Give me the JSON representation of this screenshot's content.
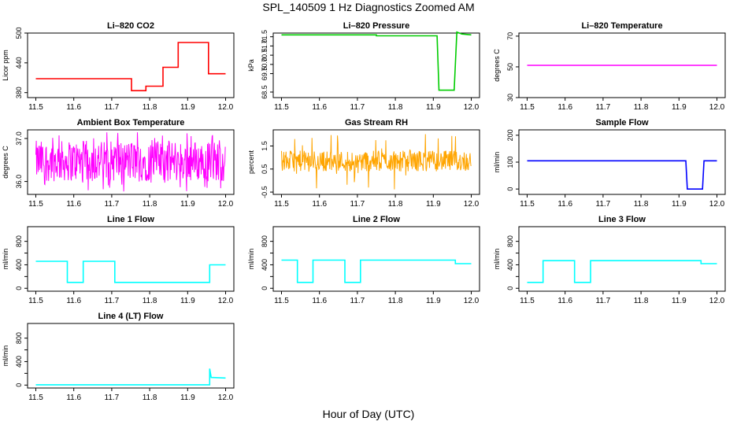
{
  "figure": {
    "title": "SPL_140509  1 Hz Diagnostics Zoomed AM",
    "xlabel": "Hour of Day (UTC)"
  },
  "chart_data": [
    {
      "type": "line",
      "title": "Li–820 CO2",
      "ylabel": "Licor ppm",
      "color": "#ff0000",
      "xlim": [
        11.5,
        12.0
      ],
      "ylim": [
        370,
        500
      ],
      "yticks": [
        380,
        440,
        500
      ],
      "ytick_labels": [
        "380",
        "440",
        "500"
      ],
      "x_ticks": [
        "11.5",
        "11.6",
        "11.7",
        "11.8",
        "11.9",
        "12.0"
      ],
      "series": [
        {
          "values": [
            [
              11.5,
              408
            ],
            [
              11.752,
              408
            ],
            [
              11.752,
              384
            ],
            [
              11.79,
              384
            ],
            [
              11.79,
              393
            ],
            [
              11.835,
              393
            ],
            [
              11.835,
              431
            ],
            [
              11.875,
              431
            ],
            [
              11.875,
              481
            ],
            [
              11.955,
              481
            ],
            [
              11.955,
              418
            ],
            [
              12.0,
              418
            ]
          ]
        }
      ]
    },
    {
      "type": "line",
      "title": "Li–820 Pressure",
      "ylabel": "kPa",
      "color": "#00cc00",
      "xlim": [
        11.5,
        12.0
      ],
      "ylim": [
        68.2,
        71.7
      ],
      "yticks": [
        68.5,
        69.5,
        70.0,
        70.5,
        71.0,
        71.5
      ],
      "ytick_labels": [
        "68.5",
        "69.5",
        "70.0",
        "70.5",
        "71.0",
        "71.5"
      ],
      "x_ticks": [
        "11.5",
        "11.6",
        "11.7",
        "11.8",
        "11.9",
        "12.0"
      ],
      "series": [
        {
          "values": [
            [
              11.5,
              71.6
            ],
            [
              11.75,
              71.6
            ],
            [
              11.75,
              71.55
            ],
            [
              11.91,
              71.55
            ],
            [
              11.915,
              68.6
            ],
            [
              11.955,
              68.6
            ],
            [
              11.962,
              71.75
            ],
            [
              11.975,
              71.65
            ],
            [
              12.0,
              71.6
            ]
          ]
        }
      ]
    },
    {
      "type": "line",
      "title": "Li–820 Temperature",
      "ylabel": "degrees C",
      "color": "#ff00ff",
      "xlim": [
        11.5,
        12.0
      ],
      "ylim": [
        30,
        72
      ],
      "yticks": [
        30,
        50,
        70
      ],
      "ytick_labels": [
        "30",
        "50",
        "70"
      ],
      "x_ticks": [
        "11.5",
        "11.6",
        "11.7",
        "11.8",
        "11.9",
        "12.0"
      ],
      "series": [
        {
          "values": [
            [
              11.5,
              51
            ],
            [
              12.0,
              51
            ]
          ]
        }
      ]
    },
    {
      "type": "line",
      "title": "Ambient Box Temperature",
      "ylabel": "degrees C",
      "color": "#ff00ff",
      "xlim": [
        11.5,
        12.0
      ],
      "ylim": [
        35.7,
        37.2
      ],
      "yticks": [
        36.0,
        37.0
      ],
      "ytick_labels": [
        "36.0",
        "37.0"
      ],
      "x_ticks": [
        "11.5",
        "11.6",
        "11.7",
        "11.8",
        "11.9",
        "12.0"
      ],
      "series": [
        {
          "values": [
            [
              11.5,
              36.5
            ],
            [
              12.0,
              36.5
            ]
          ],
          "noise_band": [
            36.0,
            36.95
          ]
        }
      ]
    },
    {
      "type": "line",
      "title": "Gas Stream RH",
      "ylabel": "percent",
      "color": "#ffa500",
      "xlim": [
        11.5,
        12.0
      ],
      "ylim": [
        -0.6,
        2.2
      ],
      "yticks": [
        -0.5,
        0.5,
        1.5
      ],
      "ytick_labels": [
        "-0.5",
        "0.5",
        "1.5"
      ],
      "x_ticks": [
        "11.5",
        "11.6",
        "11.7",
        "11.8",
        "11.9",
        "12.0"
      ],
      "series": [
        {
          "values": [
            [
              11.5,
              0.9
            ],
            [
              12.0,
              0.9
            ]
          ],
          "noise_band": [
            0.4,
            1.3
          ]
        }
      ]
    },
    {
      "type": "line",
      "title": "Sample Flow",
      "ylabel": "ml/min",
      "color": "#0000ff",
      "xlim": [
        11.5,
        12.0
      ],
      "ylim": [
        -20,
        220
      ],
      "yticks": [
        0,
        100,
        200
      ],
      "ytick_labels": [
        "0",
        "100",
        "200"
      ],
      "x_ticks": [
        "11.5",
        "11.6",
        "11.7",
        "11.8",
        "11.9",
        "12.0"
      ],
      "series": [
        {
          "values": [
            [
              11.5,
              105
            ],
            [
              11.918,
              105
            ],
            [
              11.922,
              0
            ],
            [
              11.962,
              0
            ],
            [
              11.966,
              105
            ],
            [
              12.0,
              105
            ]
          ]
        }
      ]
    },
    {
      "type": "line",
      "title": "Line 1 Flow",
      "ylabel": "ml/min",
      "color": "#00ffff",
      "xlim": [
        11.5,
        12.0
      ],
      "ylim": [
        -50,
        1050
      ],
      "yticks": [
        0,
        200,
        400,
        600,
        800
      ],
      "ytick_labels": [
        "0",
        "400",
        "800"
      ],
      "x_ticks": [
        "11.5",
        "11.6",
        "11.7",
        "11.8",
        "11.9",
        "12.0"
      ],
      "series": [
        {
          "values": [
            [
              11.5,
              460
            ],
            [
              11.583,
              460
            ],
            [
              11.583,
              100
            ],
            [
              11.625,
              100
            ],
            [
              11.625,
              460
            ],
            [
              11.708,
              460
            ],
            [
              11.708,
              100
            ],
            [
              11.958,
              100
            ],
            [
              11.958,
              400
            ],
            [
              12.0,
              400
            ]
          ]
        }
      ]
    },
    {
      "type": "line",
      "title": "Line 2 Flow",
      "ylabel": "ml/min",
      "color": "#00ffff",
      "xlim": [
        11.5,
        12.0
      ],
      "ylim": [
        -50,
        1050
      ],
      "yticks": [
        0,
        200,
        400,
        600,
        800
      ],
      "ytick_labels": [
        "0",
        "400",
        "800"
      ],
      "x_ticks": [
        "11.5",
        "11.6",
        "11.7",
        "11.8",
        "11.9",
        "12.0"
      ],
      "series": [
        {
          "values": [
            [
              11.5,
              480
            ],
            [
              11.542,
              480
            ],
            [
              11.542,
              100
            ],
            [
              11.583,
              100
            ],
            [
              11.583,
              480
            ],
            [
              11.667,
              480
            ],
            [
              11.667,
              100
            ],
            [
              11.708,
              100
            ],
            [
              11.708,
              480
            ],
            [
              11.958,
              480
            ],
            [
              11.958,
              420
            ],
            [
              12.0,
              420
            ]
          ]
        }
      ]
    },
    {
      "type": "line",
      "title": "Line 3 Flow",
      "ylabel": "ml/min",
      "color": "#00ffff",
      "xlim": [
        11.5,
        12.0
      ],
      "ylim": [
        -50,
        1050
      ],
      "yticks": [
        0,
        200,
        400,
        600,
        800
      ],
      "ytick_labels": [
        "0",
        "400",
        "800"
      ],
      "x_ticks": [
        "11.5",
        "11.6",
        "11.7",
        "11.8",
        "11.9",
        "12.0"
      ],
      "series": [
        {
          "values": [
            [
              11.5,
              100
            ],
            [
              11.542,
              100
            ],
            [
              11.542,
              470
            ],
            [
              11.625,
              470
            ],
            [
              11.625,
              100
            ],
            [
              11.667,
              100
            ],
            [
              11.667,
              470
            ],
            [
              11.958,
              470
            ],
            [
              11.958,
              420
            ],
            [
              12.0,
              420
            ]
          ]
        }
      ]
    },
    {
      "type": "line",
      "title": "Line 4 (LT) Flow",
      "ylabel": "ml/min",
      "color": "#00ffff",
      "xlim": [
        11.5,
        12.0
      ],
      "ylim": [
        -50,
        1050
      ],
      "yticks": [
        0,
        200,
        400,
        600,
        800
      ],
      "ytick_labels": [
        "0",
        "400",
        "800"
      ],
      "x_ticks": [
        "11.5",
        "11.6",
        "11.7",
        "11.8",
        "11.9",
        "12.0"
      ],
      "series": [
        {
          "values": [
            [
              11.5,
              5
            ],
            [
              11.958,
              5
            ],
            [
              11.958,
              280
            ],
            [
              11.962,
              130
            ],
            [
              12.0,
              120
            ]
          ]
        }
      ]
    }
  ]
}
